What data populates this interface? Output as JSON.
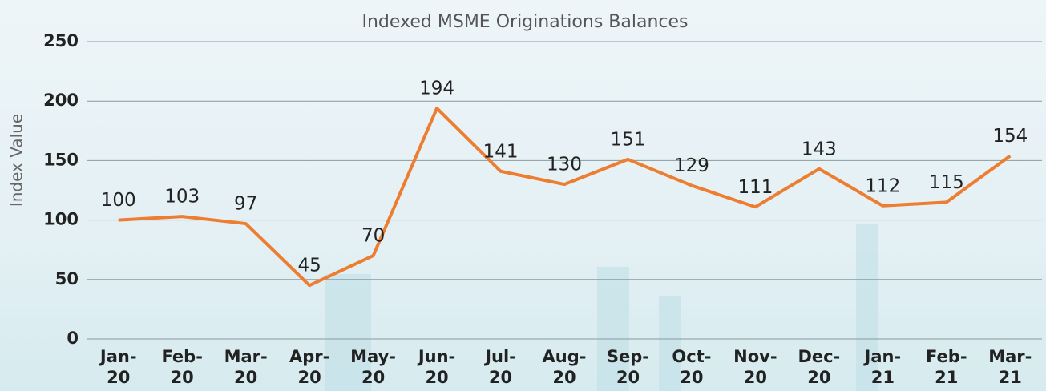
{
  "chart_data": {
    "type": "line",
    "title": "Indexed MSME Originations Balances",
    "y_label": "Index Value",
    "categories": [
      "Jan-20",
      "Feb-20",
      "Mar-20",
      "Apr-20",
      "May-20",
      "Jun-20",
      "Jul-20",
      "Aug-20",
      "Sep-20",
      "Oct-20",
      "Nov-20",
      "Dec-20",
      "Jan-21",
      "Feb-21",
      "Mar-21"
    ],
    "values": [
      100,
      103,
      97,
      45,
      70,
      194,
      141,
      130,
      151,
      129,
      111,
      143,
      112,
      115,
      154
    ],
    "color": "#ed7d31",
    "ylim": [
      0,
      250
    ],
    "yticks": [
      0,
      50,
      100,
      150,
      200,
      250
    ],
    "grid": true
  }
}
